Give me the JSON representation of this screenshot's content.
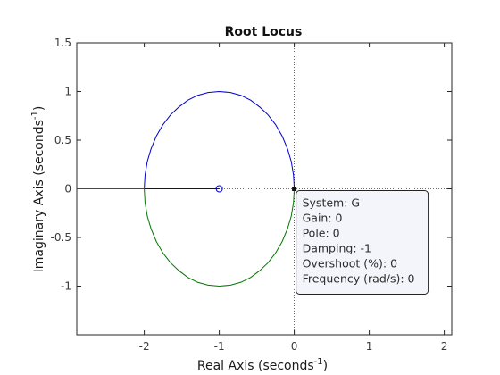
{
  "chart_data": {
    "type": "line",
    "title": "Root Locus",
    "xlabel": "Real Axis (seconds",
    "ylabel": "Imaginary Axis (seconds",
    "axis_unit_superscript": "-1",
    "xlim": [
      -2.9,
      2.1
    ],
    "ylim": [
      -1.5,
      1.5
    ],
    "xticks": [
      -2,
      -1,
      0,
      1,
      2
    ],
    "yticks": [
      1.5,
      1,
      0.5,
      0,
      -0.5,
      -1
    ],
    "grid": false,
    "series": [
      {
        "color": "#0000cc",
        "points": [
          [
            -1.0,
            0.0
          ],
          [
            -2.0,
            0.0
          ],
          [
            -1.99,
            0.14
          ],
          [
            -1.96,
            0.28
          ],
          [
            -1.91,
            0.41
          ],
          [
            -1.84,
            0.54
          ],
          [
            -1.75,
            0.66
          ],
          [
            -1.65,
            0.76
          ],
          [
            -1.54,
            0.84
          ],
          [
            -1.42,
            0.91
          ],
          [
            -1.29,
            0.96
          ],
          [
            -1.15,
            0.99
          ],
          [
            -1.0,
            1.0
          ],
          [
            -0.85,
            0.99
          ],
          [
            -0.71,
            0.96
          ],
          [
            -0.58,
            0.91
          ],
          [
            -0.46,
            0.84
          ],
          [
            -0.35,
            0.76
          ],
          [
            -0.25,
            0.66
          ],
          [
            -0.16,
            0.54
          ],
          [
            -0.09,
            0.41
          ],
          [
            -0.04,
            0.28
          ],
          [
            -0.01,
            0.14
          ],
          [
            0.0,
            0.0
          ]
        ]
      },
      {
        "color": "#007700",
        "points": [
          [
            -2.9,
            0.0
          ],
          [
            -2.0,
            0.0
          ],
          [
            -1.99,
            -0.14
          ],
          [
            -1.96,
            -0.28
          ],
          [
            -1.91,
            -0.41
          ],
          [
            -1.84,
            -0.54
          ],
          [
            -1.75,
            -0.66
          ],
          [
            -1.65,
            -0.76
          ],
          [
            -1.54,
            -0.84
          ],
          [
            -1.42,
            -0.91
          ],
          [
            -1.29,
            -0.96
          ],
          [
            -1.15,
            -0.99
          ],
          [
            -1.0,
            -1.0
          ],
          [
            -0.85,
            -0.99
          ],
          [
            -0.71,
            -0.96
          ],
          [
            -0.58,
            -0.91
          ],
          [
            -0.46,
            -0.84
          ],
          [
            -0.35,
            -0.76
          ],
          [
            -0.25,
            -0.66
          ],
          [
            -0.16,
            -0.54
          ],
          [
            -0.09,
            -0.41
          ],
          [
            -0.04,
            -0.28
          ],
          [
            -0.01,
            -0.14
          ],
          [
            0.0,
            0.0
          ]
        ]
      }
    ],
    "zeros": [
      [
        -1.0,
        0.0
      ]
    ],
    "selected_point": [
      0.0,
      0.0
    ],
    "datatip": {
      "lines": [
        "System: G",
        "Gain: 0",
        "Pole: 0",
        "Damping: -1",
        "Overshoot (%): 0",
        "Frequency (rad/s): 0"
      ]
    },
    "colors": {
      "axes": "#262626",
      "tick_text": "#3a3a3a",
      "dotted_guides": "#444444",
      "tip_background": "#f4f4fb",
      "tip_border": "#222222"
    }
  }
}
